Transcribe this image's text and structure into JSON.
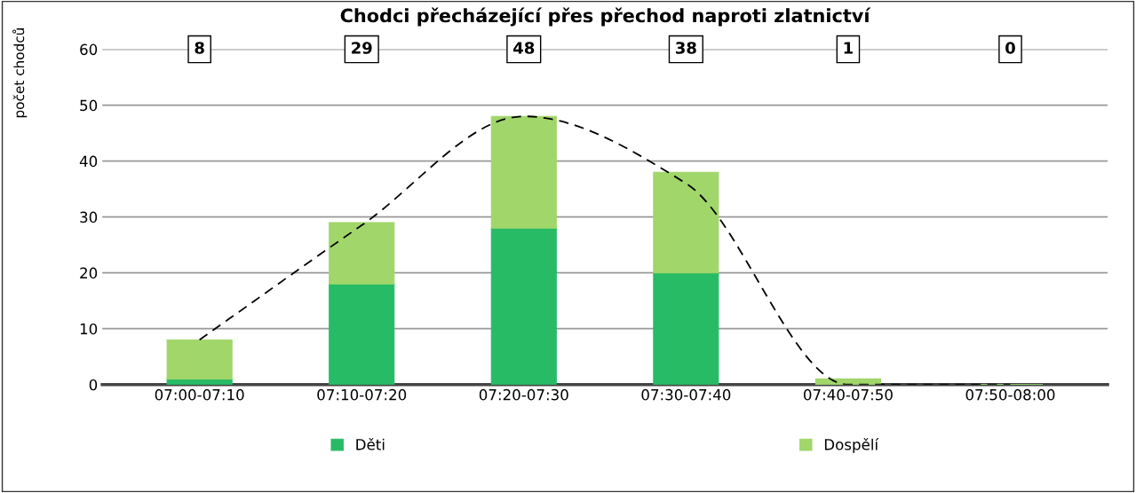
{
  "chart_data": {
    "type": "bar",
    "title": "Chodci přecházející přes přechod naproti zlatnictví",
    "ylabel": "počet chodců",
    "categories": [
      "07:00-07:10",
      "07:10-07:20",
      "07:20-07:30",
      "07:30-07:40",
      "07:40-07:50",
      "07:50-08:00"
    ],
    "stacked": true,
    "series": [
      {
        "name": "Děti",
        "color": "#27bb66",
        "values": [
          1,
          18,
          28,
          20,
          0,
          0
        ]
      },
      {
        "name": "Dospělí",
        "color": "#a1d66a",
        "values": [
          7,
          11,
          20,
          18,
          1,
          0
        ]
      },
      {
        "type": "line",
        "color": "#000000",
        "line_style": "dashed",
        "values": [
          8,
          28.5,
          48,
          36,
          0,
          0
        ]
      }
    ],
    "annotations": [
      {
        "text": "8",
        "x": "07:00-07:10",
        "y": 60
      },
      {
        "text": "29",
        "x": "07:10-07:20",
        "y": 60
      },
      {
        "text": "48",
        "x": "07:20-07:30",
        "y": 60
      },
      {
        "text": "38",
        "x": "07:30-07:40",
        "y": 60
      },
      {
        "text": "1",
        "x": "07:40-07:50",
        "y": 60
      },
      {
        "text": "0",
        "x": "07:50-08:00",
        "y": 60
      }
    ],
    "ylim": [
      0,
      60
    ],
    "yticks": [
      0,
      10,
      20,
      30,
      40,
      50,
      60
    ],
    "grid": "y",
    "legend": "bottom"
  }
}
